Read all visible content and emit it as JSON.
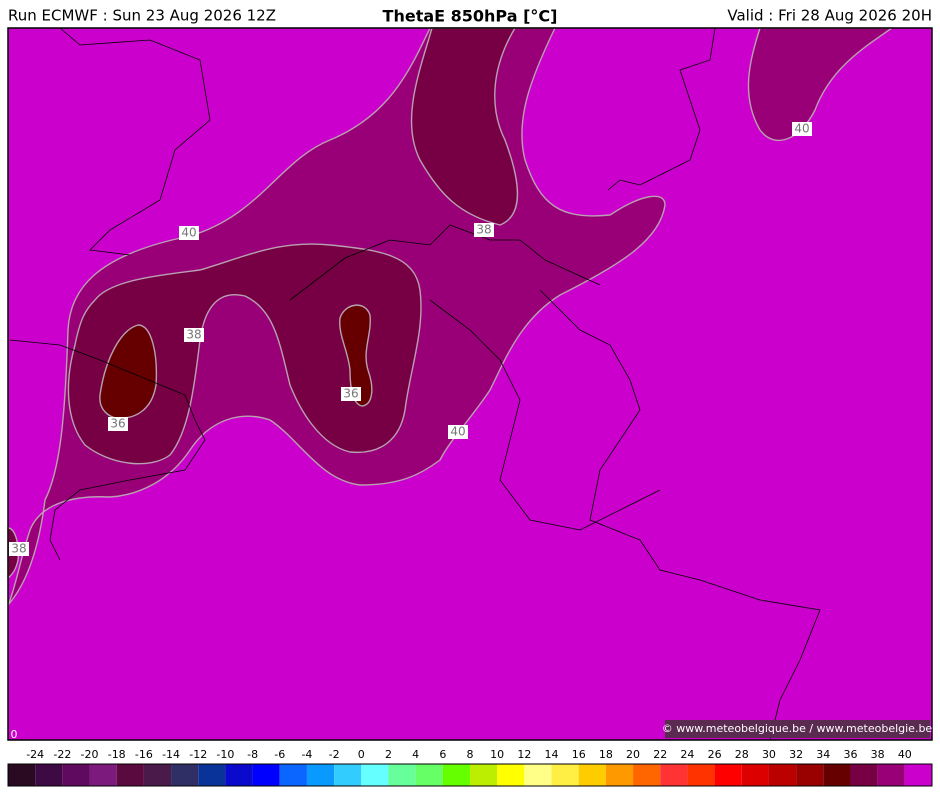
{
  "header": {
    "run": "Run ECMWF : Sun 23 Aug 2026 12Z",
    "title": "ThetaE 850hPa [°C]",
    "valid": "Valid : Fri 28 Aug 2026 20H"
  },
  "contour_labels": [
    "40",
    "38",
    "36",
    "36",
    "40",
    "38",
    "40",
    "38"
  ],
  "corner_label": "0",
  "copyright": "© www.meteobelgique.be / www.meteobelgie.be",
  "colorbar": {
    "labels": [
      -24,
      -22,
      -20,
      -18,
      -16,
      -14,
      -12,
      -10,
      -8,
      -6,
      -4,
      -2,
      0,
      2,
      4,
      6,
      8,
      10,
      12,
      14,
      16,
      18,
      20,
      22,
      24,
      26,
      28,
      30,
      32,
      34,
      36,
      38,
      40
    ],
    "colors": [
      "#2a0a22",
      "#3e0a44",
      "#5f0a5f",
      "#7d1a7d",
      "#5a0a3e",
      "#4a1a4a",
      "#2f2f66",
      "#0a3399",
      "#0a0acc",
      "#0000ff",
      "#0a66ff",
      "#0a99ff",
      "#33ccff",
      "#66ffff",
      "#66ff99",
      "#66ff66",
      "#66ff00",
      "#bbee00",
      "#ffff00",
      "#ffff88",
      "#ffee44",
      "#ffcc00",
      "#ff9900",
      "#ff6600",
      "#ff3333",
      "#ff3300",
      "#ff0000",
      "#dd0000",
      "#bb0000",
      "#990000",
      "#660000",
      "#770044",
      "#990077",
      "#cc00cc"
    ]
  }
}
